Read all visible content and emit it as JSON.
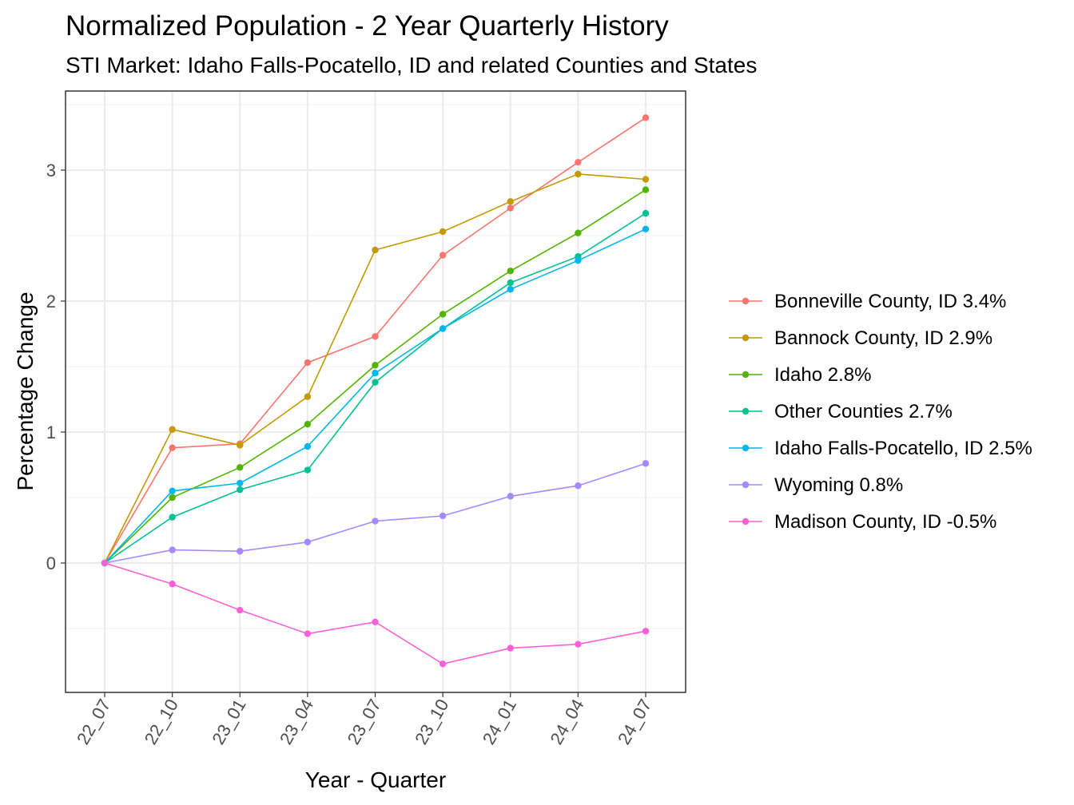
{
  "chart_data": {
    "type": "line",
    "title": "Normalized Population - 2 Year Quarterly History",
    "subtitle": "STI Market: Idaho Falls-Pocatello, ID and related Counties and States",
    "xlabel": "Year - Quarter",
    "ylabel": "Percentage Change",
    "categories": [
      "22_07",
      "22_10",
      "23_01",
      "23_04",
      "23_07",
      "23_10",
      "24_01",
      "24_04",
      "24_07"
    ],
    "ylim": [
      -1.0,
      3.6
    ],
    "yticks": [
      0,
      1,
      2,
      3
    ],
    "grid": true,
    "legend_position": "right",
    "series": [
      {
        "name": "Bonneville County, ID 3.4%",
        "color": "#F8766D",
        "values": [
          0,
          0.88,
          0.91,
          1.53,
          1.73,
          2.35,
          2.71,
          3.06,
          3.4
        ]
      },
      {
        "name": "Bannock County, ID 2.9%",
        "color": "#C49A00",
        "values": [
          0,
          1.02,
          0.9,
          1.27,
          2.39,
          2.53,
          2.76,
          2.97,
          2.93
        ]
      },
      {
        "name": "Idaho 2.8%",
        "color": "#53B400",
        "values": [
          0,
          0.5,
          0.73,
          1.06,
          1.51,
          1.9,
          2.23,
          2.52,
          2.85
        ]
      },
      {
        "name": "Other Counties 2.7%",
        "color": "#00C094",
        "values": [
          0,
          0.35,
          0.56,
          0.71,
          1.38,
          1.79,
          2.14,
          2.34,
          2.67
        ]
      },
      {
        "name": "Idaho Falls-Pocatello, ID 2.5%",
        "color": "#00B6EB",
        "values": [
          0,
          0.55,
          0.61,
          0.89,
          1.45,
          1.79,
          2.09,
          2.31,
          2.55
        ]
      },
      {
        "name": "Wyoming 0.8%",
        "color": "#A58AFF",
        "values": [
          0,
          0.1,
          0.09,
          0.16,
          0.32,
          0.36,
          0.51,
          0.59,
          0.76
        ]
      },
      {
        "name": "Madison County, ID -0.5%",
        "color": "#FB61D7",
        "values": [
          0,
          -0.16,
          -0.36,
          -0.54,
          -0.45,
          -0.77,
          -0.65,
          -0.62,
          -0.52
        ]
      }
    ]
  }
}
